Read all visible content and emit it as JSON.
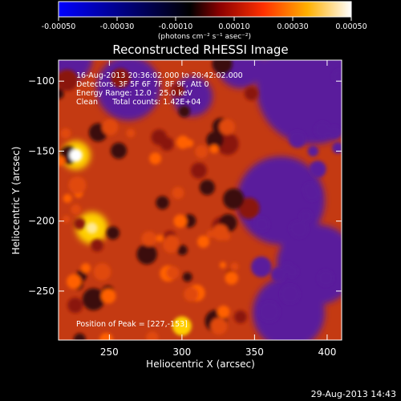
{
  "colorbar": {
    "ticks": [
      "-0.00050",
      "-0.00030",
      "-0.00010",
      "0.00010",
      "0.00030",
      "0.00050"
    ],
    "tick_values": [
      -0.0005,
      -0.0003,
      -0.0001,
      0.0001,
      0.0003,
      0.0005
    ],
    "range": [
      -0.0005,
      0.0005
    ],
    "unit_label": "(photons cm⁻² s⁻¹ asec⁻²)"
  },
  "chart_data": {
    "type": "heatmap",
    "title": "Reconstructed RHESSI Image",
    "xlabel": "Heliocentric X (arcsec)",
    "ylabel": "Heliocentric Y (arcsec)",
    "xlim": [
      215,
      410
    ],
    "ylim": [
      -285,
      -85
    ],
    "x_ticks": [
      250,
      300,
      350,
      400
    ],
    "y_ticks": [
      -100,
      -150,
      -200,
      -250
    ],
    "annotations": [
      "16-Aug-2013 20:36:02.000 to 20:42:02.000",
      "Detectors: 3F 5F 6F 7F 8F 9F, Att 0",
      "Energy Range: 12.0 - 25.0 keV",
      "Clean      Total counts: 1.42E+04"
    ],
    "peak_label": "Position of Peak = [227,-153]",
    "peak": [
      227,
      -153
    ],
    "colormap": [
      "#0000ff",
      "#000000",
      "#a00000",
      "#ff6000",
      "#ffd000",
      "#ffffff"
    ],
    "negative_tone": "#5a1f9c"
  },
  "footer": {
    "timestamp": "29-Aug-2013 14:43"
  }
}
